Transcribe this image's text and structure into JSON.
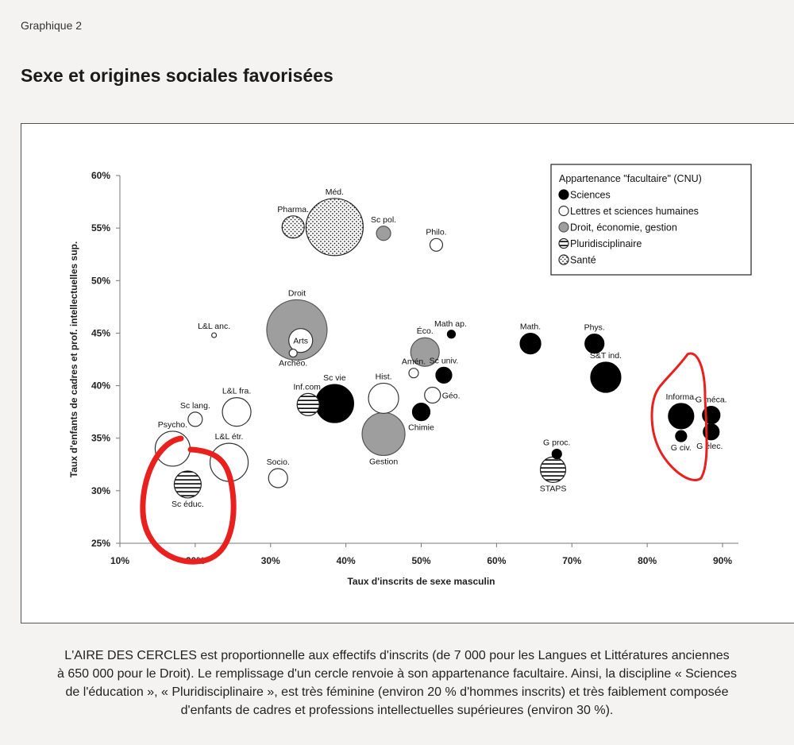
{
  "header": {
    "kicker": "Graphique 2",
    "title": "Sexe et origines sociales favorisées"
  },
  "chart_data": {
    "type": "scatter",
    "title": "",
    "xlabel": "Taux d'inscrits de sexe masculin",
    "ylabel": "Taux d'enfants de cadres et prof. intellectuelles sup.",
    "xlim": [
      10,
      90
    ],
    "ylim": [
      25,
      60
    ],
    "x_ticks": [
      "10%",
      "20%",
      "30%",
      "40%",
      "50%",
      "60%",
      "70%",
      "80%",
      "90%"
    ],
    "y_ticks": [
      "25%",
      "30%",
      "35%",
      "40%",
      "45%",
      "50%",
      "55%",
      "60%"
    ],
    "legend": {
      "title": "Appartenance \"facultaire\" (CNU)",
      "placement": "top-right",
      "items": [
        {
          "key": "sciences",
          "label": "Sciences"
        },
        {
          "key": "lettres",
          "label": "Lettres et sciences humaines"
        },
        {
          "key": "droit",
          "label": "Droit, économie, gestion"
        },
        {
          "key": "pluri",
          "label": "Pluridisciplinaire"
        },
        {
          "key": "sante",
          "label": "Santé"
        }
      ]
    },
    "points": [
      {
        "label": "Méd.",
        "x": 38.5,
        "y": 55.1,
        "size": 36,
        "group": "sante"
      },
      {
        "label": "Pharma.",
        "x": 33.0,
        "y": 55.1,
        "size": 14,
        "group": "sante"
      },
      {
        "label": "Sc pol.",
        "x": 45.0,
        "y": 54.5,
        "size": 9,
        "group": "droit"
      },
      {
        "label": "Philo.",
        "x": 52.0,
        "y": 53.4,
        "size": 8,
        "group": "lettres"
      },
      {
        "label": "Droit",
        "x": 33.5,
        "y": 45.3,
        "size": 38,
        "group": "droit"
      },
      {
        "label": "Arts",
        "x": 34.0,
        "y": 44.3,
        "size": 15,
        "group": "lettres"
      },
      {
        "label": "Archéo.",
        "x": 33.0,
        "y": 43.1,
        "size": 5,
        "group": "lettres"
      },
      {
        "label": "L&L anc.",
        "x": 22.5,
        "y": 44.8,
        "size": 3,
        "group": "lettres"
      },
      {
        "label": "Math ap.",
        "x": 54.0,
        "y": 44.9,
        "size": 5,
        "group": "sciences"
      },
      {
        "label": "Éco.",
        "x": 50.5,
        "y": 43.2,
        "size": 18,
        "group": "droit"
      },
      {
        "label": "Math.",
        "x": 64.5,
        "y": 44.0,
        "size": 13,
        "group": "sciences"
      },
      {
        "label": "Phys.",
        "x": 73.0,
        "y": 44.0,
        "size": 12,
        "group": "sciences"
      },
      {
        "label": "S&T ind.",
        "x": 74.5,
        "y": 40.8,
        "size": 19,
        "group": "sciences"
      },
      {
        "label": "Sc univ.",
        "x": 53.0,
        "y": 41.0,
        "size": 10,
        "group": "sciences"
      },
      {
        "label": "Amén.",
        "x": 49.0,
        "y": 41.2,
        "size": 6,
        "group": "lettres"
      },
      {
        "label": "Géo.",
        "x": 51.5,
        "y": 39.1,
        "size": 10,
        "group": "lettres"
      },
      {
        "label": "Hist.",
        "x": 45.0,
        "y": 38.8,
        "size": 19,
        "group": "lettres"
      },
      {
        "label": "Sc vie",
        "x": 38.5,
        "y": 38.3,
        "size": 24,
        "group": "sciences"
      },
      {
        "label": "Inf.com.",
        "x": 35.0,
        "y": 38.2,
        "size": 14,
        "group": "pluri"
      },
      {
        "label": "Chimie",
        "x": 50.0,
        "y": 37.5,
        "size": 11,
        "group": "sciences"
      },
      {
        "label": "Gestion",
        "x": 45.0,
        "y": 35.4,
        "size": 27,
        "group": "droit"
      },
      {
        "label": "L&L fra.",
        "x": 25.5,
        "y": 37.5,
        "size": 18,
        "group": "lettres"
      },
      {
        "label": "Sc lang.",
        "x": 20.0,
        "y": 36.8,
        "size": 9,
        "group": "lettres"
      },
      {
        "label": "Psycho.",
        "x": 17.0,
        "y": 34.0,
        "size": 22,
        "group": "lettres"
      },
      {
        "label": "L&L étr.",
        "x": 24.5,
        "y": 32.7,
        "size": 24,
        "group": "lettres"
      },
      {
        "label": "Socio.",
        "x": 31.0,
        "y": 31.2,
        "size": 12,
        "group": "lettres"
      },
      {
        "label": "Sc éduc.",
        "x": 19.0,
        "y": 30.6,
        "size": 17,
        "group": "pluri"
      },
      {
        "label": "G proc.",
        "x": 68.0,
        "y": 33.5,
        "size": 6,
        "group": "sciences"
      },
      {
        "label": "STAPS",
        "x": 67.5,
        "y": 32.0,
        "size": 16,
        "group": "pluri"
      },
      {
        "label": "Informa.",
        "x": 84.5,
        "y": 37.1,
        "size": 16,
        "group": "sciences"
      },
      {
        "label": "G méca.",
        "x": 88.5,
        "y": 37.2,
        "size": 11,
        "group": "sciences"
      },
      {
        "label": "G civ.",
        "x": 84.5,
        "y": 35.2,
        "size": 7,
        "group": "sciences"
      },
      {
        "label": "G élec.",
        "x": 88.5,
        "y": 35.6,
        "size": 10,
        "group": "sciences"
      }
    ]
  },
  "caption": {
    "lines": [
      "L'AIRE DES CERCLES est proportionnelle aux effectifs d'inscrits (de 7 000 pour les Langues et Littératures anciennes",
      "à 650 000 pour le Droit). Le remplissage d'un cercle renvoie à son appartenance facultaire. Ainsi, la discipline « Sciences",
      "de l'éducation », « Pluridisciplinaire », est très féminine (environ 20 % d'hommes inscrits) et très faiblement composée",
      "d'enfants de cadres et professions intellectuelles supérieures (environ 30 %)."
    ]
  }
}
